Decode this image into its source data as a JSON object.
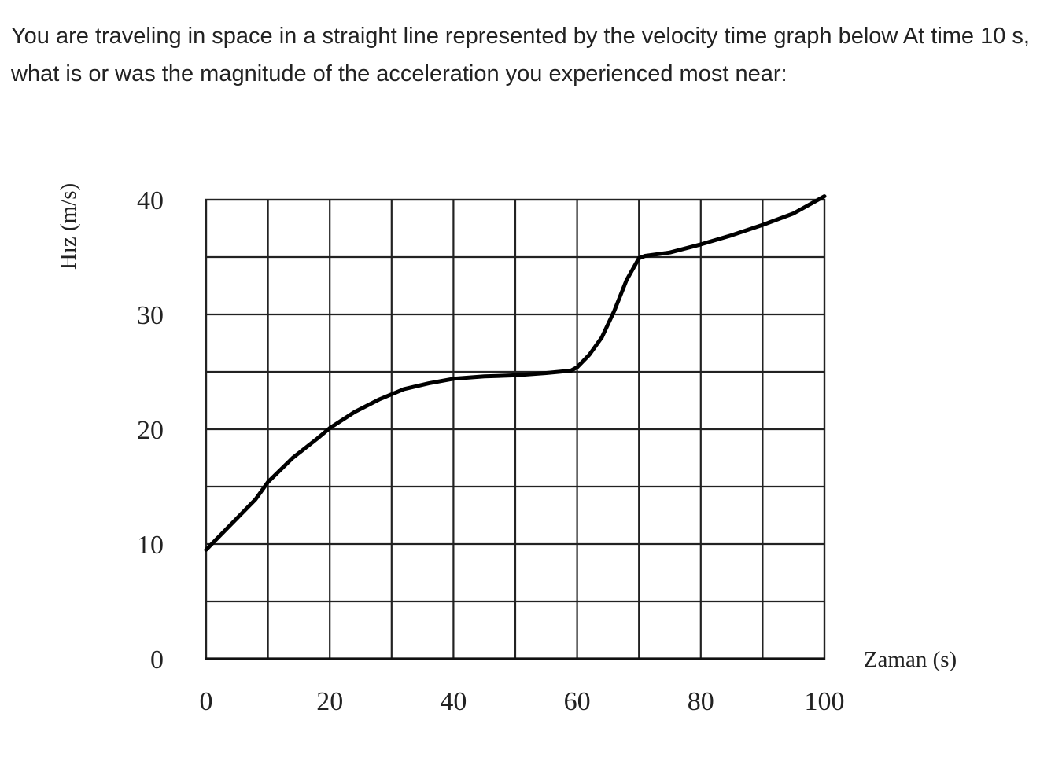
{
  "question": {
    "text": "You are traveling in space in a straight line represented by the velocity time graph below  At time 10 s, what is or was the magnitude of the acceleration you experienced most near:"
  },
  "chart_data": {
    "type": "line",
    "title": "",
    "xlabel": "Zaman (s)",
    "ylabel": "Hız (m/s)",
    "xlim": [
      0,
      100
    ],
    "ylim": [
      0,
      40
    ],
    "x_ticks": [
      0,
      20,
      40,
      60,
      80,
      100
    ],
    "y_ticks": [
      0,
      10,
      20,
      30,
      40
    ],
    "grid": true,
    "grid_x_step": 10,
    "grid_y_step": 5,
    "series": [
      {
        "color": "#000000",
        "x": [
          0,
          4,
          8,
          10,
          14,
          18,
          20,
          24,
          28,
          32,
          36,
          40,
          45,
          50,
          55,
          59,
          60,
          62,
          64,
          66,
          68,
          70,
          71,
          75,
          80,
          85,
          90,
          95,
          100
        ],
        "y": [
          9.5,
          11.7,
          13.9,
          15.4,
          17.5,
          19.2,
          20.1,
          21.5,
          22.6,
          23.5,
          24,
          24.4,
          24.6,
          24.7,
          24.9,
          25.1,
          25.4,
          26.5,
          28,
          30.3,
          33,
          34.9,
          35.1,
          35.4,
          36.1,
          36.9,
          37.8,
          38.8,
          40.3
        ]
      }
    ]
  }
}
